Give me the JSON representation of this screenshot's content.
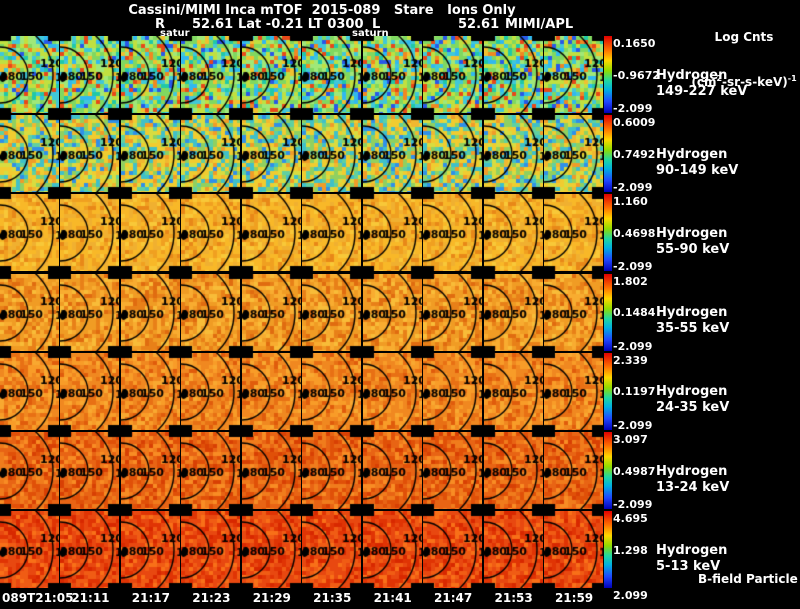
{
  "header": {
    "title": "Cassini/MIMI Inca mTOF  2015-089   Stare   Ions Only",
    "subtitle": {
      "r_label": "R",
      "r_sub": "satur",
      "r_value": "52.61",
      "mid": "Lat -0.21 LT 0300",
      "l_label": "L",
      "l_sub": "saturn",
      "l_value": "52.61",
      "org": "MIMI/APL"
    },
    "colorbar_title_line1": "Log Cnts",
    "colorbar_title": {
      "p1": "(cm",
      "sup1": "2",
      "p2": "-sr-s-keV)",
      "sup2": "-1"
    }
  },
  "chart_data": {
    "type": "heatmap",
    "title": "Cassini/MIMI Inca mTOF 2015-089 Stare Ions Only",
    "subtitle": "R_satur 52.61 Lat -0.21 LT 0300 L_saturn 52.61 MIMI/APL",
    "colorbar_title": "Log Cnts (cm2-sr-s-keV)-1",
    "xlabel": "",
    "x_categories": [
      "089T21:05",
      "21:11",
      "21:17",
      "21:23",
      "21:29",
      "21:35",
      "21:41",
      "21:47",
      "21:53",
      "21:59"
    ],
    "contour_labels": [
      "180",
      "150",
      "120"
    ],
    "annotation": "B-field Particle Flow",
    "legend_position": "right",
    "grid": false,
    "colorbar_gradient": [
      "#e00000 0%",
      "#ff7000 18%",
      "#ffd800 32%",
      "#90dc00 45%",
      "#20d8a0 58%",
      "#00b0e0 70%",
      "#2048ff 85%",
      "#0000b8 100%"
    ],
    "rows": [
      {
        "species": "Hydrogen",
        "band": "149-227 keV",
        "scale_top": "0.1650",
        "scale_mid": "-0.9672",
        "scale_bottom": "-2.099",
        "palette": [
          "#c0e040",
          "#c0e040",
          "#c0e040",
          "#80d860",
          "#80d860",
          "#80d860",
          "#40c8d8",
          "#40c8d8",
          "#a0e878",
          "#a0e878",
          "#f0c030",
          "#f08820",
          "#2858e8",
          "#30b8f0",
          "#20c8a8",
          "#e84818"
        ]
      },
      {
        "species": "Hydrogen",
        "band": "90-149 keV",
        "scale_top": "0.6009",
        "scale_mid": "0.7492",
        "scale_bottom": "-2.099",
        "palette": [
          "#f0cc30",
          "#f0cc30",
          "#f0cc30",
          "#d8dc40",
          "#d8dc40",
          "#90d060",
          "#90d060",
          "#40c0c8",
          "#40c0c8",
          "#f09c28",
          "#f0b830",
          "#3090e8",
          "#60d0a0"
        ]
      },
      {
        "species": "Hydrogen",
        "band": "55-90 keV",
        "scale_top": "1.160",
        "scale_mid": "0.4698",
        "scale_bottom": "-2.099",
        "palette": [
          "#f8b828",
          "#f8b828",
          "#f8b828",
          "#f0a020",
          "#f0a020",
          "#f8c838",
          "#e88818",
          "#f0b030",
          "#f0b030"
        ]
      },
      {
        "species": "Hydrogen",
        "band": "35-55 keV",
        "scale_top": "1.802",
        "scale_mid": "0.1484",
        "scale_bottom": "-2.099",
        "palette": [
          "#f09c24",
          "#f09c24",
          "#f09c24",
          "#e88018",
          "#e88018",
          "#f8ac30",
          "#f8ac30",
          "#e06c10",
          "#f8bc38"
        ]
      },
      {
        "species": "Hydrogen",
        "band": "24-35 keV",
        "scale_top": "2.339",
        "scale_mid": "0.1197",
        "scale_bottom": "-2.099",
        "palette": [
          "#f08820",
          "#f08820",
          "#f08820",
          "#e87014",
          "#e87014",
          "#f89c28",
          "#f89c28",
          "#e05c0c",
          "#f8a830"
        ]
      },
      {
        "species": "Hydrogen",
        "band": "13-24 keV",
        "scale_top": "3.097",
        "scale_mid": "0.4987",
        "scale_bottom": "-2.099",
        "palette": [
          "#e86414",
          "#e86414",
          "#e86414",
          "#e05008",
          "#e05008",
          "#f07c1c",
          "#f07c1c",
          "#d84004",
          "#f88c24"
        ]
      },
      {
        "species": "Hydrogen",
        "band": "5-13 keV",
        "scale_top": "4.695",
        "scale_mid": "1.298",
        "scale_bottom": "2.099",
        "palette": [
          "#e84810",
          "#e84810",
          "#e84810",
          "#e03404",
          "#e03404",
          "#f05c14",
          "#f05c14",
          "#d82800",
          "#f87018"
        ]
      }
    ]
  },
  "colors": {
    "background": "#000000",
    "text": "#ffffff",
    "contour": "#000000"
  }
}
